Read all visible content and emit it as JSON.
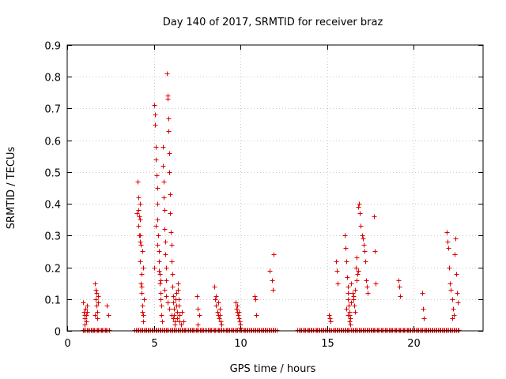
{
  "chart_data": {
    "type": "scatter",
    "title": "Day 140 of 2017, SRMTID for receiver braz",
    "xlabel": "GPS time / hours",
    "ylabel": "SRMTID / TECUs",
    "xlim": [
      0,
      24
    ],
    "ylim": [
      0,
      0.9
    ],
    "xticks": [
      0,
      5,
      10,
      15,
      20
    ],
    "yticks": [
      0,
      0.1,
      0.2,
      0.3,
      0.4,
      0.5,
      0.6,
      0.7,
      0.8,
      0.9
    ],
    "ytick_labels": [
      "0",
      "0.1",
      "0.2",
      "0.3",
      "0.4",
      "0.5",
      "0.6",
      "0.7",
      "0.8",
      "0.9"
    ],
    "grid": true,
    "marker": "+",
    "color": "#dd0000",
    "series": [
      {
        "name": "SRMTID",
        "points": [
          [
            0.9,
            0.09
          ],
          [
            0.95,
            0.06
          ],
          [
            1.0,
            0.05
          ],
          [
            1.02,
            0.04
          ],
          [
            1.05,
            0.07
          ],
          [
            1.08,
            0.03
          ],
          [
            1.1,
            0.05
          ],
          [
            1.12,
            0.08
          ],
          [
            1.15,
            0.06
          ],
          [
            1.0,
            0.02
          ],
          [
            1.6,
            0.15
          ],
          [
            1.62,
            0.13
          ],
          [
            1.65,
            0.1
          ],
          [
            1.68,
            0.08
          ],
          [
            1.7,
            0.12
          ],
          [
            1.72,
            0.06
          ],
          [
            1.75,
            0.04
          ],
          [
            1.78,
            0.09
          ],
          [
            1.8,
            0.11
          ],
          [
            1.6,
            0.05
          ],
          [
            2.3,
            0.08
          ],
          [
            2.35,
            0.05
          ],
          [
            4.0,
            0.37
          ],
          [
            4.05,
            0.47
          ],
          [
            4.1,
            0.42
          ],
          [
            4.15,
            0.3
          ],
          [
            4.18,
            0.28
          ],
          [
            4.2,
            0.35
          ],
          [
            4.22,
            0.22
          ],
          [
            4.25,
            0.15
          ],
          [
            4.28,
            0.12
          ],
          [
            4.3,
            0.18
          ],
          [
            4.32,
            0.08
          ],
          [
            4.35,
            0.25
          ],
          [
            4.38,
            0.2
          ],
          [
            4.4,
            0.05
          ],
          [
            4.42,
            0.1
          ],
          [
            4.1,
            0.38
          ],
          [
            4.15,
            0.36
          ],
          [
            4.2,
            0.4
          ],
          [
            4.25,
            0.27
          ],
          [
            4.3,
            0.14
          ],
          [
            4.35,
            0.06
          ],
          [
            4.4,
            0.03
          ],
          [
            4.12,
            0.33
          ],
          [
            4.22,
            0.3
          ],
          [
            5.0,
            0.2
          ],
          [
            5.02,
            0.71
          ],
          [
            5.05,
            0.68
          ],
          [
            5.08,
            0.65
          ],
          [
            5.1,
            0.58
          ],
          [
            5.12,
            0.54
          ],
          [
            5.15,
            0.49
          ],
          [
            5.18,
            0.45
          ],
          [
            5.2,
            0.4
          ],
          [
            5.22,
            0.35
          ],
          [
            5.25,
            0.3
          ],
          [
            5.28,
            0.25
          ],
          [
            5.3,
            0.22
          ],
          [
            5.32,
            0.18
          ],
          [
            5.35,
            0.15
          ],
          [
            5.38,
            0.12
          ],
          [
            5.4,
            0.1
          ],
          [
            5.42,
            0.08
          ],
          [
            5.45,
            0.05
          ],
          [
            5.48,
            0.03
          ],
          [
            5.5,
            0.58
          ],
          [
            5.52,
            0.52
          ],
          [
            5.55,
            0.47
          ],
          [
            5.58,
            0.42
          ],
          [
            5.6,
            0.38
          ],
          [
            5.62,
            0.32
          ],
          [
            5.65,
            0.28
          ],
          [
            5.68,
            0.24
          ],
          [
            5.7,
            0.2
          ],
          [
            5.72,
            0.16
          ],
          [
            5.75,
            0.81
          ],
          [
            5.78,
            0.74
          ],
          [
            5.8,
            0.73
          ],
          [
            5.82,
            0.67
          ],
          [
            5.85,
            0.63
          ],
          [
            5.88,
            0.56
          ],
          [
            5.9,
            0.5
          ],
          [
            5.92,
            0.43
          ],
          [
            5.95,
            0.37
          ],
          [
            5.98,
            0.31
          ],
          [
            6.0,
            0.27
          ],
          [
            6.02,
            0.22
          ],
          [
            6.05,
            0.18
          ],
          [
            6.08,
            0.14
          ],
          [
            6.1,
            0.11
          ],
          [
            6.12,
            0.09
          ],
          [
            6.15,
            0.07
          ],
          [
            6.18,
            0.05
          ],
          [
            6.2,
            0.03
          ],
          [
            6.22,
            0.02
          ],
          [
            6.25,
            0.1
          ],
          [
            6.28,
            0.12
          ],
          [
            6.3,
            0.08
          ],
          [
            6.32,
            0.06
          ],
          [
            6.35,
            0.04
          ],
          [
            6.38,
            0.15
          ],
          [
            6.4,
            0.13
          ],
          [
            6.42,
            0.1
          ],
          [
            6.45,
            0.08
          ],
          [
            6.48,
            0.05
          ],
          [
            6.5,
            0.03
          ],
          [
            6.55,
            0.02
          ],
          [
            5.1,
            0.33
          ],
          [
            5.2,
            0.27
          ],
          [
            5.3,
            0.19
          ],
          [
            5.4,
            0.16
          ],
          [
            5.6,
            0.13
          ],
          [
            5.7,
            0.11
          ],
          [
            5.8,
            0.09
          ],
          [
            5.9,
            0.07
          ],
          [
            6.0,
            0.05
          ],
          [
            6.1,
            0.04
          ],
          [
            6.6,
            0.06
          ],
          [
            6.7,
            0.03
          ],
          [
            7.5,
            0.11
          ],
          [
            7.55,
            0.07
          ],
          [
            7.6,
            0.05
          ],
          [
            7.52,
            0.02
          ],
          [
            8.5,
            0.14
          ],
          [
            8.55,
            0.1
          ],
          [
            8.6,
            0.08
          ],
          [
            8.65,
            0.06
          ],
          [
            8.7,
            0.05
          ],
          [
            8.75,
            0.04
          ],
          [
            8.8,
            0.07
          ],
          [
            8.85,
            0.03
          ],
          [
            8.6,
            0.11
          ],
          [
            8.7,
            0.09
          ],
          [
            8.8,
            0.05
          ],
          [
            8.9,
            0.02
          ],
          [
            9.7,
            0.09
          ],
          [
            9.75,
            0.07
          ],
          [
            9.8,
            0.06
          ],
          [
            9.85,
            0.05
          ],
          [
            9.9,
            0.04
          ],
          [
            9.95,
            0.03
          ],
          [
            10.0,
            0.02
          ],
          [
            9.8,
            0.08
          ],
          [
            9.9,
            0.06
          ],
          [
            10.0,
            0.01
          ],
          [
            10.8,
            0.11
          ],
          [
            10.85,
            0.1
          ],
          [
            10.9,
            0.05
          ],
          [
            11.7,
            0.19
          ],
          [
            11.8,
            0.16
          ],
          [
            11.9,
            0.24
          ],
          [
            11.85,
            0.13
          ],
          [
            15.1,
            0.05
          ],
          [
            15.15,
            0.04
          ],
          [
            15.2,
            0.03
          ],
          [
            15.5,
            0.22
          ],
          [
            15.55,
            0.19
          ],
          [
            15.6,
            0.15
          ],
          [
            16.0,
            0.3
          ],
          [
            16.05,
            0.26
          ],
          [
            16.1,
            0.22
          ],
          [
            16.15,
            0.17
          ],
          [
            16.18,
            0.14
          ],
          [
            16.2,
            0.12
          ],
          [
            16.22,
            0.1
          ],
          [
            16.25,
            0.08
          ],
          [
            16.28,
            0.06
          ],
          [
            16.3,
            0.05
          ],
          [
            16.32,
            0.04
          ],
          [
            16.35,
            0.02
          ],
          [
            16.4,
            0.15
          ],
          [
            16.45,
            0.12
          ],
          [
            16.5,
            0.1
          ],
          [
            16.55,
            0.08
          ],
          [
            16.6,
            0.06
          ],
          [
            16.65,
            0.2
          ],
          [
            16.7,
            0.23
          ],
          [
            16.75,
            0.18
          ],
          [
            16.8,
            0.39
          ],
          [
            16.85,
            0.4
          ],
          [
            16.9,
            0.37
          ],
          [
            16.95,
            0.33
          ],
          [
            17.0,
            0.3
          ],
          [
            17.05,
            0.29
          ],
          [
            17.1,
            0.27
          ],
          [
            17.15,
            0.25
          ],
          [
            17.2,
            0.22
          ],
          [
            17.25,
            0.16
          ],
          [
            17.3,
            0.14
          ],
          [
            17.35,
            0.12
          ],
          [
            16.1,
            0.07
          ],
          [
            16.2,
            0.05
          ],
          [
            16.3,
            0.03
          ],
          [
            16.4,
            0.09
          ],
          [
            16.5,
            0.11
          ],
          [
            16.6,
            0.13
          ],
          [
            16.7,
            0.16
          ],
          [
            16.8,
            0.19
          ],
          [
            17.7,
            0.36
          ],
          [
            17.75,
            0.25
          ],
          [
            17.8,
            0.15
          ],
          [
            19.1,
            0.16
          ],
          [
            19.15,
            0.14
          ],
          [
            19.2,
            0.11
          ],
          [
            20.5,
            0.12
          ],
          [
            20.55,
            0.07
          ],
          [
            20.6,
            0.04
          ],
          [
            21.9,
            0.31
          ],
          [
            21.95,
            0.28
          ],
          [
            22.0,
            0.26
          ],
          [
            22.05,
            0.2
          ],
          [
            22.1,
            0.15
          ],
          [
            22.15,
            0.13
          ],
          [
            22.2,
            0.1
          ],
          [
            22.25,
            0.07
          ],
          [
            22.3,
            0.05
          ],
          [
            22.35,
            0.24
          ],
          [
            22.4,
            0.29
          ],
          [
            22.45,
            0.18
          ],
          [
            22.5,
            0.12
          ],
          [
            22.55,
            0.09
          ],
          [
            22.2,
            0.04
          ]
        ]
      }
    ],
    "baseline_points": [
      0.9,
      0.97,
      1.05,
      1.12,
      1.2,
      1.27,
      1.35,
      1.42,
      1.5,
      1.57,
      1.65,
      1.72,
      1.8,
      1.87,
      1.95,
      2.02,
      2.1,
      2.17,
      2.25,
      2.32,
      2.4,
      3.9,
      3.97,
      4.05,
      4.12,
      4.2,
      4.27,
      4.35,
      4.42,
      4.5,
      4.57,
      4.65,
      4.72,
      4.8,
      4.87,
      4.95,
      5.02,
      5.1,
      5.17,
      5.25,
      5.32,
      5.4,
      5.47,
      5.55,
      5.62,
      5.7,
      5.77,
      5.85,
      5.92,
      6.0,
      6.07,
      6.15,
      6.22,
      6.3,
      6.37,
      6.45,
      6.52,
      6.6,
      6.67,
      6.75,
      6.82,
      6.9,
      6.97,
      7.05,
      7.12,
      7.2,
      7.27,
      7.35,
      7.42,
      7.5,
      7.57,
      7.65,
      7.72,
      7.8,
      7.87,
      7.95,
      8.02,
      8.1,
      8.17,
      8.25,
      8.32,
      8.4,
      8.47,
      8.55,
      8.62,
      8.7,
      8.77,
      8.85,
      8.92,
      9.0,
      9.07,
      9.15,
      9.22,
      9.3,
      9.37,
      9.45,
      9.52,
      9.6,
      9.67,
      9.75,
      9.82,
      9.9,
      9.97,
      10.05,
      10.12,
      10.2,
      10.27,
      10.35,
      10.42,
      10.5,
      10.57,
      10.65,
      10.72,
      10.8,
      10.87,
      10.95,
      11.02,
      11.1,
      11.17,
      11.25,
      11.32,
      11.4,
      11.47,
      11.55,
      11.62,
      11.7,
      11.77,
      11.85,
      11.92,
      12.0,
      12.07,
      13.3,
      13.37,
      13.45,
      13.52,
      13.6,
      13.67,
      13.75,
      13.82,
      13.9,
      13.97,
      14.05,
      14.12,
      14.2,
      14.27,
      14.35,
      14.42,
      14.5,
      14.57,
      14.65,
      14.72,
      14.8,
      14.87,
      14.95,
      15.02,
      15.1,
      15.17,
      15.25,
      15.32,
      15.4,
      15.47,
      15.55,
      15.62,
      15.7,
      15.77,
      15.85,
      15.92,
      16.0,
      16.07,
      16.15,
      16.22,
      16.3,
      16.37,
      16.45,
      16.52,
      16.6,
      16.67,
      16.75,
      16.82,
      16.9,
      16.97,
      17.05,
      17.12,
      17.2,
      17.27,
      17.35,
      17.42,
      17.5,
      17.57,
      17.65,
      17.72,
      17.8,
      17.87,
      17.95,
      18.02,
      18.1,
      18.17,
      18.25,
      18.32,
      18.4,
      18.47,
      18.55,
      18.62,
      18.7,
      18.77,
      18.85,
      18.92,
      19.0,
      19.07,
      19.15,
      19.22,
      19.3,
      19.37,
      19.45,
      19.52,
      19.6,
      19.67,
      19.75,
      19.82,
      19.9,
      19.97,
      20.05,
      20.12,
      20.2,
      20.27,
      20.35,
      20.42,
      20.5,
      20.57,
      20.65,
      20.72,
      20.8,
      20.87,
      20.95,
      21.02,
      21.1,
      21.17,
      21.25,
      21.32,
      21.4,
      21.47,
      21.55,
      21.62,
      21.7,
      21.77,
      21.85,
      21.92,
      22.0,
      22.07,
      22.15,
      22.22,
      22.3,
      22.37,
      22.45,
      22.52,
      22.6
    ]
  }
}
